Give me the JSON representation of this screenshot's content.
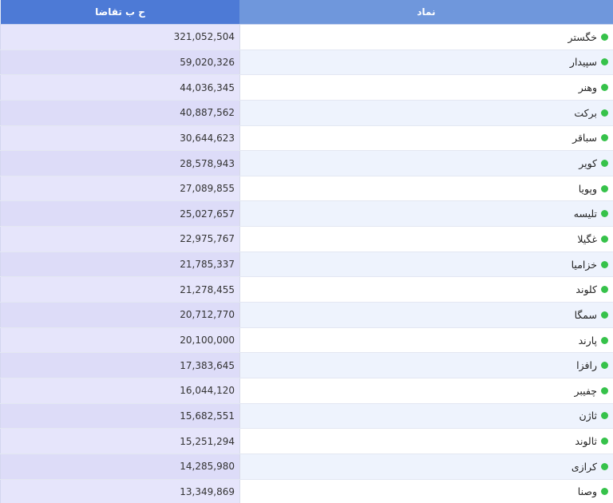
{
  "table": {
    "headers": {
      "symbol": "نماد",
      "demand": "ح ب تقاضا"
    },
    "status_color": "#36c24a",
    "rows": [
      {
        "symbol": "خگستر",
        "demand": "321,052,504"
      },
      {
        "symbol": "سپیدار",
        "demand": "59,020,326"
      },
      {
        "symbol": "وهنر",
        "demand": "44,036,345"
      },
      {
        "symbol": "برکت",
        "demand": "40,887,562"
      },
      {
        "symbol": "سباقر",
        "demand": "30,644,623"
      },
      {
        "symbol": "کویر",
        "demand": "28,578,943"
      },
      {
        "symbol": "وپویا",
        "demand": "27,089,855"
      },
      {
        "symbol": "تلیسه",
        "demand": "25,027,657"
      },
      {
        "symbol": "غگیلا",
        "demand": "22,975,767"
      },
      {
        "symbol": "خزامیا",
        "demand": "21,785,337"
      },
      {
        "symbol": "کلوند",
        "demand": "21,278,455"
      },
      {
        "symbol": "سمگا",
        "demand": "20,712,770"
      },
      {
        "symbol": "پارند",
        "demand": "20,100,000"
      },
      {
        "symbol": "رافزا",
        "demand": "17,383,645"
      },
      {
        "symbol": "چفیبر",
        "demand": "16,044,120"
      },
      {
        "symbol": "ثاژن",
        "demand": "15,682,551"
      },
      {
        "symbol": "ثالوند",
        "demand": "15,251,294"
      },
      {
        "symbol": "کرازی",
        "demand": "14,285,980"
      },
      {
        "symbol": "وصنا",
        "demand": "13,349,869"
      }
    ]
  }
}
